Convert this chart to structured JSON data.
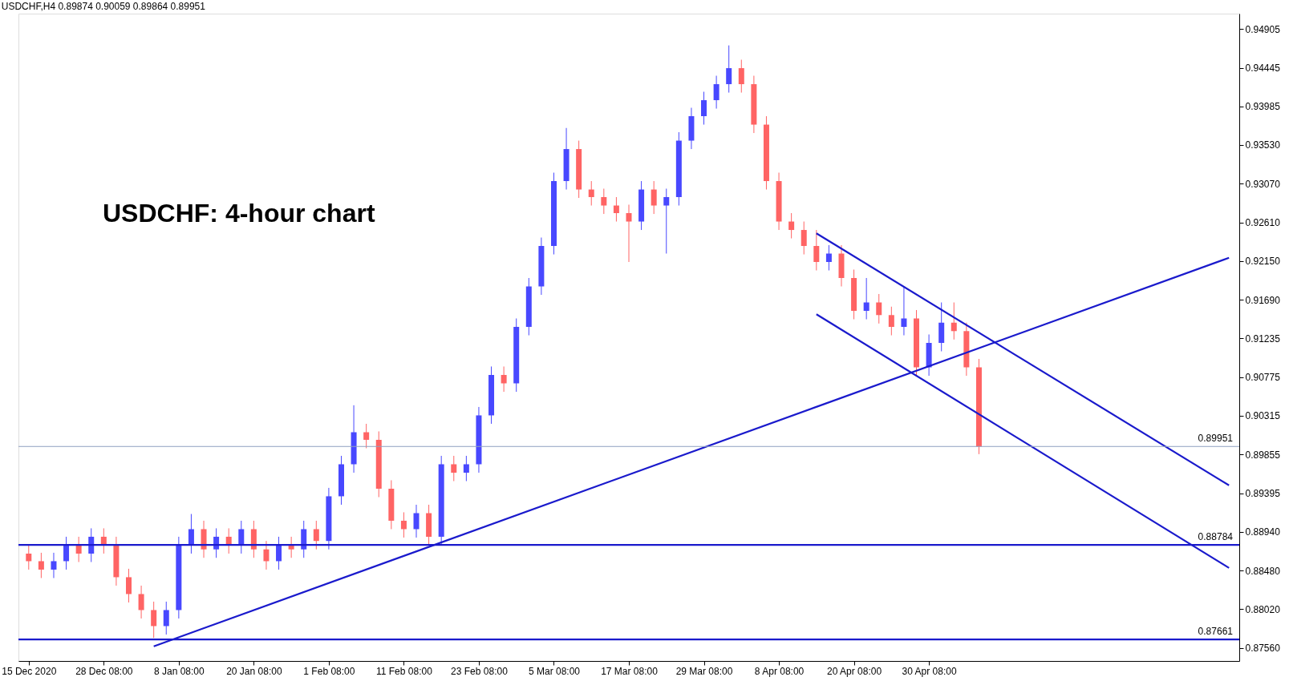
{
  "chart_data": {
    "type": "candlestick",
    "title": "USDCHF,H4  0.89874 0.90059 0.89864 0.89951",
    "annotations": [
      "USDCHF: 4-hour chart"
    ],
    "categories": [
      "15 Dec 2020",
      null,
      null,
      null,
      null,
      null,
      "28 Dec 08:00",
      null,
      null,
      null,
      null,
      null,
      "8 Jan 08:00",
      null,
      null,
      null,
      null,
      null,
      "20 Jan 08:00",
      null,
      null,
      null,
      null,
      null,
      "1 Feb 08:00",
      null,
      null,
      null,
      null,
      null,
      "11 Feb 08:00",
      null,
      null,
      null,
      null,
      null,
      "23 Feb 08:00",
      null,
      null,
      null,
      null,
      null,
      "5 Mar 08:00",
      null,
      null,
      null,
      null,
      null,
      "17 Mar 08:00",
      null,
      null,
      null,
      null,
      null,
      "29 Mar 08:00",
      null,
      null,
      null,
      null,
      null,
      "8 Apr 08:00",
      null,
      null,
      null,
      null,
      null,
      "20 Apr 08:00",
      null,
      null,
      null,
      null,
      null,
      "30 Apr 08:00",
      null,
      null,
      null,
      null,
      null,
      null,
      null,
      null,
      null,
      null,
      null,
      null,
      null,
      null,
      null,
      null,
      null,
      null,
      null,
      null,
      null,
      null,
      null,
      null
    ],
    "ohlc": [
      [
        0.8868,
        0.8878,
        0.8849,
        0.8859
      ],
      [
        0.8859,
        0.8869,
        0.8839,
        0.8849
      ],
      [
        0.8849,
        0.8869,
        0.8839,
        0.8859
      ],
      [
        0.8859,
        0.8888,
        0.8849,
        0.8878
      ],
      [
        0.8878,
        0.8888,
        0.8858,
        0.8868
      ],
      [
        0.8868,
        0.8898,
        0.8858,
        0.8888
      ],
      [
        0.8888,
        0.8898,
        0.8868,
        0.8878
      ],
      [
        0.8878,
        0.8888,
        0.883,
        0.884
      ],
      [
        0.884,
        0.885,
        0.881,
        0.882
      ],
      [
        0.882,
        0.883,
        0.8791,
        0.8801
      ],
      [
        0.8801,
        0.8811,
        0.8768,
        0.8782
      ],
      [
        0.8782,
        0.8811,
        0.8772,
        0.8801
      ],
      [
        0.8801,
        0.8888,
        0.8791,
        0.8878
      ],
      [
        0.8878,
        0.8915,
        0.8868,
        0.8897
      ],
      [
        0.8897,
        0.8907,
        0.8863,
        0.8873
      ],
      [
        0.8873,
        0.8898,
        0.8863,
        0.8888
      ],
      [
        0.8888,
        0.8898,
        0.8868,
        0.8878
      ],
      [
        0.8878,
        0.8907,
        0.8868,
        0.8897
      ],
      [
        0.8897,
        0.8907,
        0.8863,
        0.8873
      ],
      [
        0.8873,
        0.8883,
        0.8849,
        0.8859
      ],
      [
        0.8859,
        0.8888,
        0.8849,
        0.8878
      ],
      [
        0.8878,
        0.8888,
        0.8863,
        0.8873
      ],
      [
        0.8873,
        0.8907,
        0.8863,
        0.8897
      ],
      [
        0.8897,
        0.8907,
        0.8873,
        0.8883
      ],
      [
        0.8883,
        0.8946,
        0.8873,
        0.8936
      ],
      [
        0.8936,
        0.8984,
        0.8926,
        0.8974
      ],
      [
        0.8974,
        0.9044,
        0.8964,
        0.9012
      ],
      [
        0.9012,
        0.9022,
        0.8993,
        0.9003
      ],
      [
        0.9003,
        0.9013,
        0.8935,
        0.8945
      ],
      [
        0.8945,
        0.8955,
        0.8897,
        0.8907
      ],
      [
        0.8907,
        0.8917,
        0.8887,
        0.8897
      ],
      [
        0.8897,
        0.8926,
        0.8887,
        0.8916
      ],
      [
        0.8916,
        0.8926,
        0.8878,
        0.8888
      ],
      [
        0.8888,
        0.8984,
        0.8878,
        0.8974
      ],
      [
        0.8974,
        0.8984,
        0.8954,
        0.8964
      ],
      [
        0.8964,
        0.8984,
        0.8954,
        0.8974
      ],
      [
        0.8974,
        0.9042,
        0.8964,
        0.9032
      ],
      [
        0.9032,
        0.909,
        0.9022,
        0.908
      ],
      [
        0.908,
        0.909,
        0.906,
        0.907
      ],
      [
        0.907,
        0.9147,
        0.906,
        0.9137
      ],
      [
        0.9137,
        0.9195,
        0.9127,
        0.9185
      ],
      [
        0.9185,
        0.9243,
        0.9175,
        0.9233
      ],
      [
        0.9233,
        0.932,
        0.9223,
        0.931
      ],
      [
        0.931,
        0.9373,
        0.93,
        0.9348
      ],
      [
        0.9348,
        0.9358,
        0.929,
        0.93
      ],
      [
        0.93,
        0.931,
        0.9281,
        0.9291
      ],
      [
        0.9291,
        0.9301,
        0.9271,
        0.9281
      ],
      [
        0.9281,
        0.9291,
        0.9262,
        0.9272
      ],
      [
        0.9272,
        0.9282,
        0.9214,
        0.9262
      ],
      [
        0.9262,
        0.931,
        0.9252,
        0.93
      ],
      [
        0.93,
        0.931,
        0.9271,
        0.9281
      ],
      [
        0.9281,
        0.9301,
        0.9224,
        0.9291
      ],
      [
        0.9291,
        0.9368,
        0.9281,
        0.9358
      ],
      [
        0.9358,
        0.9397,
        0.9348,
        0.9387
      ],
      [
        0.9387,
        0.9416,
        0.9377,
        0.9406
      ],
      [
        0.9406,
        0.9435,
        0.9396,
        0.9425
      ],
      [
        0.9425,
        0.9471,
        0.9415,
        0.9444
      ],
      [
        0.9444,
        0.9454,
        0.9415,
        0.9425
      ],
      [
        0.9425,
        0.9435,
        0.9367,
        0.9377
      ],
      [
        0.9377,
        0.9387,
        0.93,
        0.931
      ],
      [
        0.931,
        0.932,
        0.9252,
        0.9262
      ],
      [
        0.9262,
        0.9272,
        0.9242,
        0.9252
      ],
      [
        0.9252,
        0.9262,
        0.9223,
        0.9233
      ],
      [
        0.9233,
        0.9252,
        0.9204,
        0.9214
      ],
      [
        0.9214,
        0.9234,
        0.9204,
        0.9224
      ],
      [
        0.9224,
        0.9234,
        0.9185,
        0.9195
      ],
      [
        0.9195,
        0.9205,
        0.9146,
        0.9156
      ],
      [
        0.9156,
        0.9195,
        0.9146,
        0.9166
      ],
      [
        0.9166,
        0.9176,
        0.9141,
        0.9151
      ],
      [
        0.9151,
        0.9161,
        0.9127,
        0.9137
      ],
      [
        0.9137,
        0.9185,
        0.9127,
        0.9147
      ],
      [
        0.9147,
        0.9157,
        0.9079,
        0.9089
      ],
      [
        0.9089,
        0.9128,
        0.9079,
        0.9118
      ],
      [
        0.9118,
        0.9166,
        0.9108,
        0.9142
      ],
      [
        0.9142,
        0.9166,
        0.9122,
        0.9132
      ],
      [
        0.9132,
        0.9142,
        0.9079,
        0.9089
      ],
      [
        0.9089,
        0.9099,
        0.8986,
        0.8995
      ],
      null,
      null,
      null,
      null,
      null,
      null,
      null,
      null,
      null,
      null,
      null,
      null,
      null,
      null,
      null,
      null,
      null,
      null,
      null,
      null
    ],
    "colors": [
      "#ff6464",
      "#ff6464",
      "#4848ff",
      "#4848ff",
      "#ff6464",
      "#4848ff",
      "#ff6464",
      "#ff6464",
      "#ff6464",
      "#ff6464",
      "#ff6464",
      "#4848ff",
      "#4848ff",
      "#4848ff",
      "#ff6464",
      "#4848ff",
      "#ff6464",
      "#4848ff",
      "#ff6464",
      "#ff6464",
      "#4848ff",
      "#ff6464",
      "#4848ff",
      "#ff6464",
      "#4848ff",
      "#4848ff",
      "#4848ff",
      "#ff6464",
      "#ff6464",
      "#ff6464",
      "#ff6464",
      "#4848ff",
      "#ff6464",
      "#4848ff",
      "#ff6464",
      "#4848ff",
      "#4848ff",
      "#4848ff",
      "#ff6464",
      "#4848ff",
      "#4848ff",
      "#4848ff",
      "#4848ff",
      "#4848ff",
      "#ff6464",
      "#ff6464",
      "#ff6464",
      "#ff6464",
      "#ff6464",
      "#4848ff",
      "#ff6464",
      "#4848ff",
      "#4848ff",
      "#4848ff",
      "#4848ff",
      "#4848ff",
      "#4848ff",
      "#ff6464",
      "#ff6464",
      "#ff6464",
      "#ff6464",
      "#ff6464",
      "#ff6464",
      "#ff6464",
      "#4848ff",
      "#ff6464",
      "#ff6464",
      "#4848ff",
      "#ff6464",
      "#ff6464",
      "#4848ff",
      "#ff6464",
      "#4848ff",
      "#4848ff",
      "#ff6464",
      "#ff6464",
      "#ff6464",
      null,
      null,
      null,
      null,
      null,
      null,
      null,
      null,
      null,
      null,
      null,
      null,
      null,
      null,
      null,
      null,
      null,
      null,
      null,
      null
    ],
    "series": [
      {
        "type": "line",
        "color": "#1a1acc",
        "values": [
          null,
          null,
          null,
          null,
          null,
          null,
          null,
          null,
          null,
          null,
          0.8758,
          null,
          null,
          null,
          null,
          null,
          null,
          null,
          null,
          null,
          null,
          null,
          null,
          null,
          null,
          null,
          null,
          null,
          null,
          null,
          null,
          null,
          null,
          null,
          null,
          null,
          null,
          null,
          null,
          null,
          null,
          null,
          null,
          null,
          null,
          null,
          null,
          null,
          null,
          null,
          null,
          null,
          null,
          null,
          null,
          null,
          null,
          null,
          null,
          null,
          null,
          null,
          null,
          null,
          null,
          null,
          null,
          null,
          null,
          null,
          null,
          null,
          null,
          null,
          null,
          null,
          null,
          null,
          null,
          null,
          null,
          null,
          null,
          null,
          null,
          null,
          null,
          null,
          null,
          null,
          null,
          null,
          null,
          null,
          null,
          null,
          0.9219
        ]
      },
      {
        "type": "line",
        "color": "#1a1acc",
        "values": [
          null,
          null,
          null,
          null,
          null,
          null,
          null,
          null,
          null,
          null,
          null,
          null,
          null,
          null,
          null,
          null,
          null,
          null,
          null,
          null,
          null,
          null,
          null,
          null,
          null,
          null,
          null,
          null,
          null,
          null,
          null,
          null,
          null,
          null,
          null,
          null,
          null,
          null,
          null,
          null,
          null,
          null,
          null,
          null,
          null,
          null,
          null,
          null,
          null,
          null,
          null,
          null,
          null,
          null,
          null,
          null,
          null,
          null,
          null,
          null,
          null,
          null,
          null,
          0.9248,
          null,
          null,
          null,
          null,
          null,
          null,
          null,
          null,
          null,
          null,
          null,
          null,
          null,
          null,
          null,
          null,
          null,
          null,
          null,
          null,
          null,
          null,
          null,
          null,
          null,
          null,
          null,
          null,
          null,
          null,
          null,
          null,
          0.8949
        ]
      },
      {
        "type": "line",
        "color": "#1a1acc",
        "values": [
          null,
          null,
          null,
          null,
          null,
          null,
          null,
          null,
          null,
          null,
          null,
          null,
          null,
          null,
          null,
          null,
          null,
          null,
          null,
          null,
          null,
          null,
          null,
          null,
          null,
          null,
          null,
          null,
          null,
          null,
          null,
          null,
          null,
          null,
          null,
          null,
          null,
          null,
          null,
          null,
          null,
          null,
          null,
          null,
          null,
          null,
          null,
          null,
          null,
          null,
          null,
          null,
          null,
          null,
          null,
          null,
          null,
          null,
          null,
          null,
          null,
          null,
          null,
          0.9152,
          null,
          null,
          null,
          null,
          null,
          null,
          null,
          null,
          null,
          null,
          null,
          null,
          null,
          null,
          null,
          null,
          null,
          null,
          null,
          null,
          null,
          null,
          null,
          null,
          null,
          null,
          null,
          null,
          null,
          null,
          null,
          null,
          0.8851
        ]
      }
    ],
    "ref_lines": [
      {
        "axis": "y",
        "value": 0.88784,
        "label": "0.88784",
        "color": "#1a1acc"
      },
      {
        "axis": "y",
        "value": 0.87661,
        "label": "0.87661",
        "color": "#1a1acc"
      },
      {
        "axis": "y",
        "value": 0.89951,
        "label": "0.89951",
        "color": "#8fa0c0"
      }
    ],
    "ylim": [
      0.87406,
      0.95087
    ],
    "yticks": [
      {
        "value": 0.8756,
        "label": "0.87560"
      },
      {
        "value": 0.8802,
        "label": "0.88020"
      },
      {
        "value": 0.8848,
        "label": "0.88480"
      },
      {
        "value": 0.8894,
        "label": "0.88940"
      },
      {
        "value": 0.89395,
        "label": "0.89395"
      },
      {
        "value": 0.89855,
        "label": "0.89855"
      },
      {
        "value": 0.90315,
        "label": "0.90315"
      },
      {
        "value": 0.90775,
        "label": "0.90775"
      },
      {
        "value": 0.91235,
        "label": "0.91235"
      },
      {
        "value": 0.9169,
        "label": "0.91690"
      },
      {
        "value": 0.9215,
        "label": "0.92150"
      },
      {
        "value": 0.9261,
        "label": "0.92610"
      },
      {
        "value": 0.9307,
        "label": "0.93070"
      },
      {
        "value": 0.9353,
        "label": "0.93530"
      },
      {
        "value": 0.93985,
        "label": "0.93985"
      },
      {
        "value": 0.94445,
        "label": "0.94445"
      },
      {
        "value": 0.94905,
        "label": "0.94905"
      }
    ],
    "grid": false
  }
}
